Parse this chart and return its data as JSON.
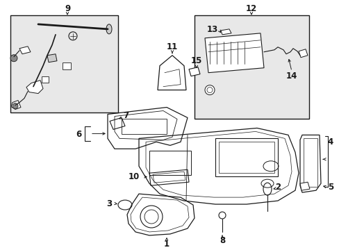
{
  "bg_color": "#ffffff",
  "line_color": "#1a1a1a",
  "box_fill": "#e8e8e8",
  "fig_width": 4.89,
  "fig_height": 3.6,
  "dpi": 100,
  "label_fontsize": 8.5,
  "small_fontsize": 7.5
}
